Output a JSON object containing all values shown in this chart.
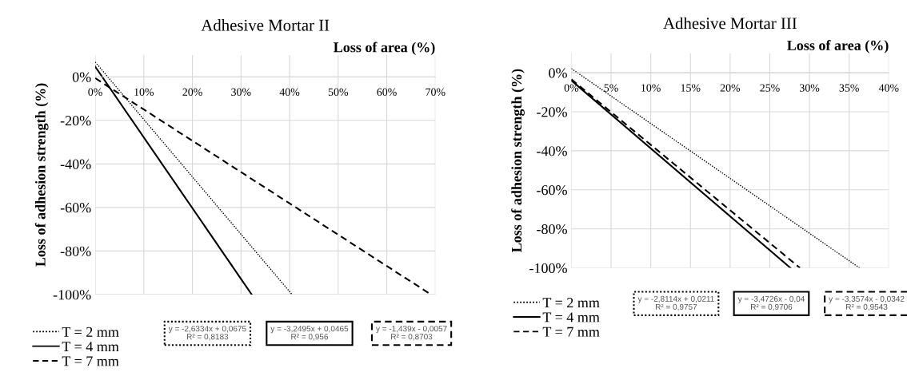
{
  "chart_data": [
    {
      "type": "line",
      "title": "Adhesive Mortar II",
      "xlabel": "Loss of area (%)",
      "ylabel": "Loss of adhesion strength (%)",
      "series": [
        {
          "name": "T = 2 mm",
          "color": "#000000",
          "line_style": "dotted",
          "x": [
            0,
            40.5
          ],
          "values": [
            6.8,
            -100
          ]
        },
        {
          "name": "T = 4 mm",
          "color": "#000000",
          "line_style": "solid",
          "x": [
            0,
            32.2
          ],
          "values": [
            4.7,
            -100
          ]
        },
        {
          "name": "T = 7 mm",
          "color": "#000000",
          "line_style": "dashed",
          "x": [
            0,
            69.1
          ],
          "values": [
            -0.6,
            -100
          ]
        }
      ],
      "annotations": [
        "y = -2,6334x + 0,0675\nR² = 0,8183",
        "y = -3,2495x + 0,0465\nR² = 0,956",
        "y = -1,439x - 0,0057\nR² = 0,8703"
      ],
      "xlim": [
        0,
        70
      ],
      "xticks": [
        {
          "value": 0,
          "label": "0%"
        },
        {
          "value": 10,
          "label": "10%"
        },
        {
          "value": 20,
          "label": "20%"
        },
        {
          "value": 30,
          "label": "30%"
        },
        {
          "value": 40,
          "label": "40%"
        },
        {
          "value": 50,
          "label": "50%"
        },
        {
          "value": 60,
          "label": "60%"
        },
        {
          "value": 70,
          "label": "70%"
        }
      ],
      "ylim": [
        -100,
        10
      ],
      "yticks": [
        {
          "value": 0,
          "label": "0%"
        },
        {
          "value": -20,
          "label": "-20%"
        },
        {
          "value": -40,
          "label": "-40%"
        },
        {
          "value": -60,
          "label": "-60%"
        },
        {
          "value": -80,
          "label": "-80%"
        },
        {
          "value": -100,
          "label": "-100%"
        }
      ],
      "grid": true,
      "legend": "bottom left",
      "marker": "none"
    },
    {
      "type": "line",
      "title": "Adhesive Mortar III",
      "xlabel": "Loss of area (%)",
      "ylabel": "Loss of adhesion strength (%)",
      "series": [
        {
          "name": "T = 2 mm",
          "color": "#000000",
          "line_style": "dotted",
          "x": [
            0,
            36.3
          ],
          "values": [
            2.1,
            -100
          ]
        },
        {
          "name": "T = 4 mm",
          "color": "#000000",
          "line_style": "solid",
          "x": [
            0,
            27.6
          ],
          "values": [
            -4,
            -100
          ]
        },
        {
          "name": "T = 7 mm",
          "color": "#000000",
          "line_style": "dashed",
          "x": [
            0,
            28.8
          ],
          "values": [
            -3.4,
            -100
          ]
        }
      ],
      "annotations": [
        "y = -2,8114x + 0,0211\nR² = 0,9757",
        "y = -3,4726x - 0,04\nR² = 0,9706",
        "y = -3,3574x - 0,0342\nR² = 0,9543"
      ],
      "xlim": [
        0,
        40
      ],
      "xticks": [
        {
          "value": 0,
          "label": "0%"
        },
        {
          "value": 5,
          "label": "5%"
        },
        {
          "value": 10,
          "label": "10%"
        },
        {
          "value": 15,
          "label": "15%"
        },
        {
          "value": 20,
          "label": "20%"
        },
        {
          "value": 25,
          "label": "25%"
        },
        {
          "value": 30,
          "label": "30%"
        },
        {
          "value": 35,
          "label": "35%"
        },
        {
          "value": 40,
          "label": "40%"
        }
      ],
      "ylim": [
        -100,
        10
      ],
      "yticks": [
        {
          "value": 0,
          "label": "0%"
        },
        {
          "value": -20,
          "label": "-20%"
        },
        {
          "value": -40,
          "label": "-40%"
        },
        {
          "value": -60,
          "label": "-60%"
        },
        {
          "value": -80,
          "label": "-80%"
        },
        {
          "value": -100,
          "label": "-100%"
        }
      ],
      "grid": true,
      "legend": "bottom left",
      "marker": "none"
    }
  ]
}
